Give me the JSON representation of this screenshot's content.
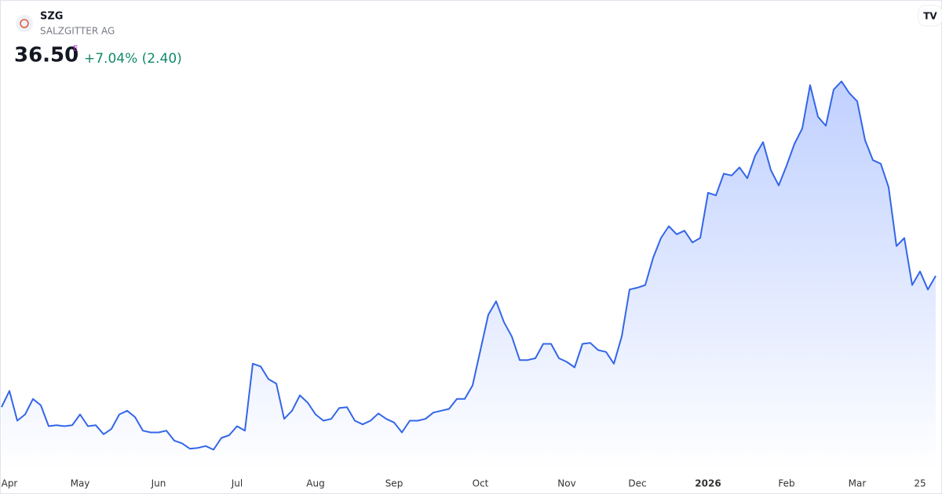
{
  "header": {
    "symbol": "SZG",
    "name": "SALZGITTER AG",
    "price": "36.50",
    "marker": "E",
    "change": "+7.04% (2.40)"
  },
  "chart_data": {
    "type": "area",
    "color": "#3366e8",
    "values": [
      22.0,
      23.8,
      20.5,
      21.2,
      22.9,
      22.2,
      19.9,
      20.0,
      19.9,
      20.0,
      21.2,
      19.9,
      20.0,
      19.0,
      19.6,
      21.2,
      21.6,
      20.9,
      19.4,
      19.2,
      19.2,
      19.4,
      18.3,
      18.0,
      17.4,
      17.5,
      17.7,
      17.3,
      18.6,
      18.9,
      19.9,
      19.4,
      26.8,
      26.5,
      25.1,
      24.6,
      20.7,
      21.6,
      23.3,
      22.5,
      21.2,
      20.5,
      20.7,
      21.9,
      22.0,
      20.5,
      20.1,
      20.5,
      21.3,
      20.7,
      20.3,
      19.2,
      20.5,
      20.5,
      20.7,
      21.4,
      21.6,
      21.8,
      22.9,
      22.9,
      24.4,
      28.3,
      32.2,
      33.7,
      31.4,
      29.8,
      27.2,
      27.2,
      27.4,
      29.0,
      29.0,
      27.4,
      27.0,
      26.4,
      29.0,
      29.1,
      28.3,
      28.1,
      26.8,
      29.8,
      35.0,
      35.2,
      35.5,
      38.5,
      40.7,
      42.0,
      41.1,
      41.5,
      40.2,
      40.7,
      45.7,
      45.4,
      47.8,
      47.6,
      48.5,
      47.3,
      49.8,
      51.3,
      48.2,
      46.5,
      48.7,
      51.1,
      52.8,
      57.6,
      54.1,
      53.1,
      57.1,
      58.0,
      56.7,
      55.8,
      51.5,
      49.3,
      48.9,
      46.3,
      39.8,
      40.7,
      35.5,
      37.0,
      35.0,
      36.5
    ],
    "ylim": [
      15,
      67
    ],
    "xlim": [
      0,
      119
    ],
    "xticks": [
      {
        "value": 1,
        "label": "Apr"
      },
      {
        "value": 10,
        "label": "May"
      },
      {
        "value": 20,
        "label": "Jun"
      },
      {
        "value": 30,
        "label": "Jul"
      },
      {
        "value": 40,
        "label": "Aug"
      },
      {
        "value": 50,
        "label": "Sep"
      },
      {
        "value": 61,
        "label": "Oct"
      },
      {
        "value": 72,
        "label": "Nov"
      },
      {
        "value": 81,
        "label": "Dec"
      },
      {
        "value": 90,
        "label": "2026"
      },
      {
        "value": 100,
        "label": "Feb"
      },
      {
        "value": 109,
        "label": "Mar"
      },
      {
        "value": 117,
        "label": "25"
      }
    ]
  }
}
